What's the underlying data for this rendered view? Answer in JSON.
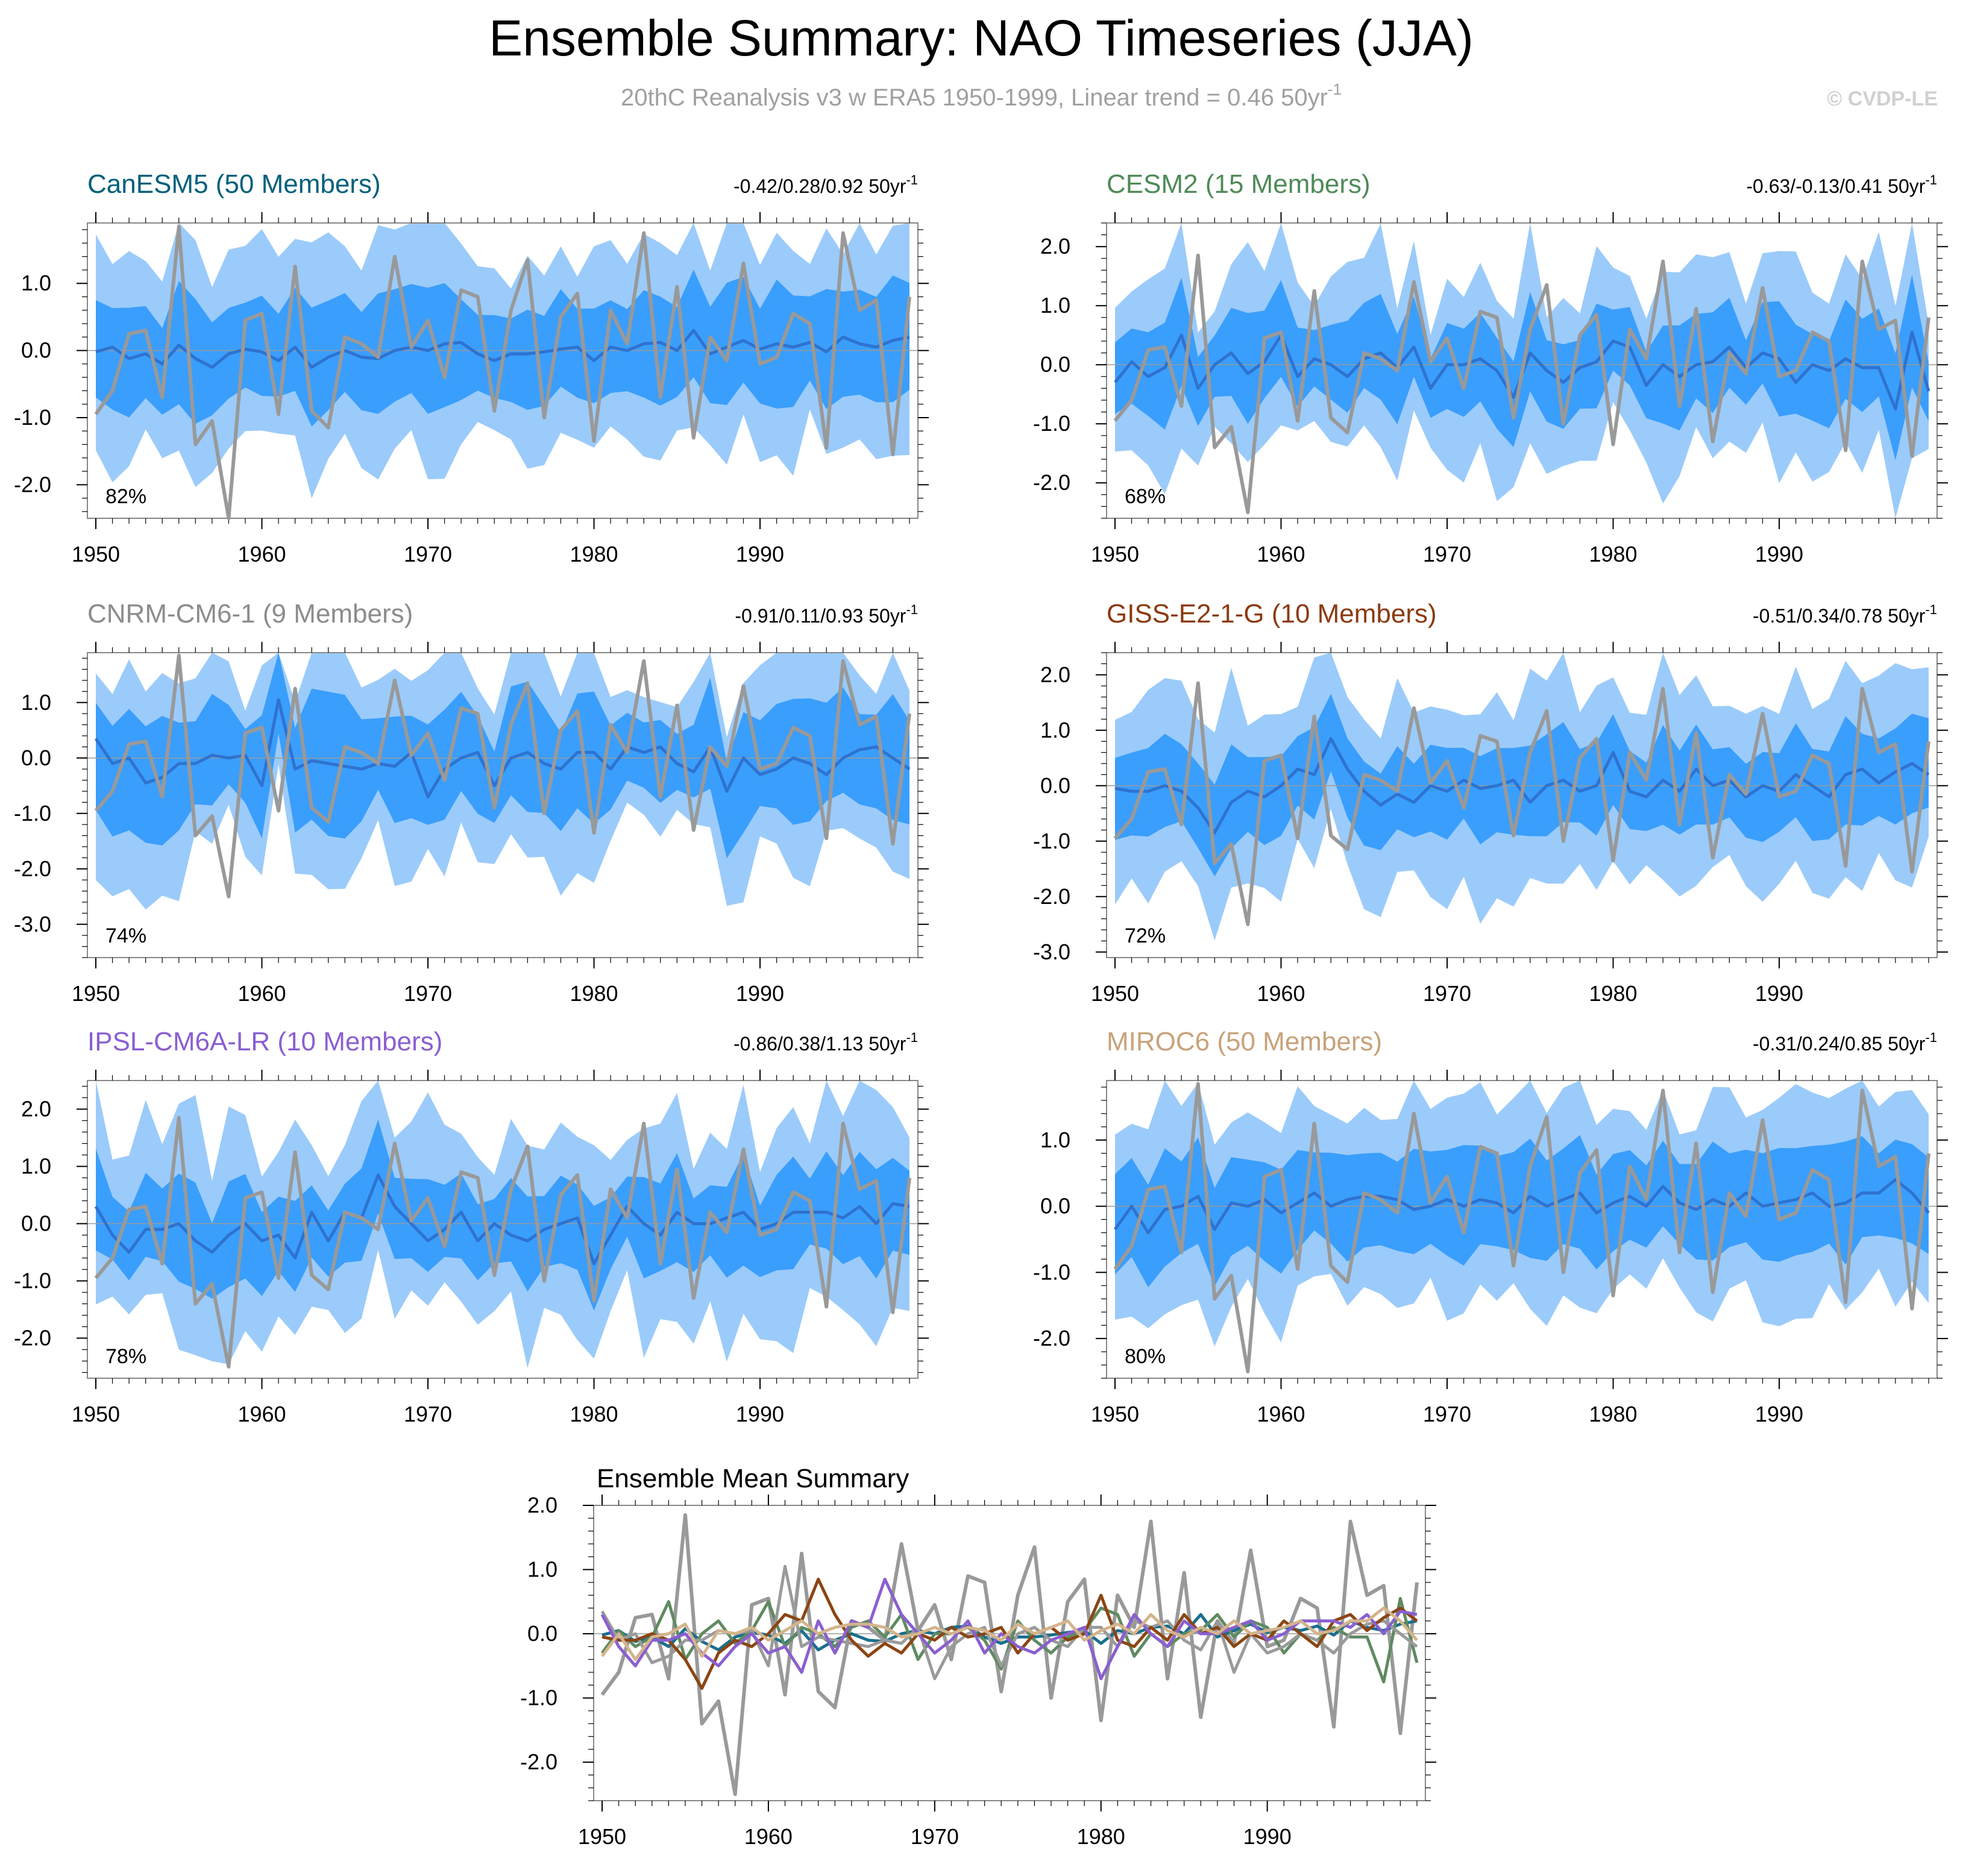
{
  "title": "Ensemble Summary: NAO Timeseries (JJA)",
  "subtitle": "20thC Reanalysis v3 w ERA5 1950-1999, Linear trend = 0.46 50yr",
  "subtitle_sup": "-1",
  "watermark": "© CVDP-LE",
  "colors": {
    "band_outer": "#9bcbfa",
    "band_inner": "#3a9efc",
    "ens_mean": "#2f72cf",
    "obs": "#999999",
    "zero": "#9a9a9a",
    "frame": "#888888"
  },
  "chart_data": {
    "years": [
      1950,
      1951,
      1952,
      1953,
      1954,
      1955,
      1956,
      1957,
      1958,
      1959,
      1960,
      1961,
      1962,
      1963,
      1964,
      1965,
      1966,
      1967,
      1968,
      1969,
      1970,
      1971,
      1972,
      1973,
      1974,
      1975,
      1976,
      1977,
      1978,
      1979,
      1980,
      1981,
      1982,
      1983,
      1984,
      1985,
      1986,
      1987,
      1988,
      1989,
      1990,
      1991,
      1992,
      1993,
      1994,
      1995,
      1996,
      1997,
      1998,
      1999
    ],
    "x_ticks": [
      1950,
      1960,
      1970,
      1980,
      1990
    ],
    "observed": {
      "name": "20thC Reanalysis v3 w ERA5",
      "values": [
        -0.95,
        -0.6,
        0.25,
        0.3,
        -0.7,
        1.85,
        -1.4,
        -1.05,
        -2.5,
        0.45,
        0.55,
        -0.95,
        1.25,
        -0.9,
        -1.15,
        0.2,
        0.1,
        -0.1,
        1.4,
        0.05,
        0.45,
        -0.4,
        0.9,
        0.8,
        -0.9,
        0.6,
        1.35,
        -1.0,
        0.5,
        0.85,
        -1.35,
        0.6,
        0.1,
        1.75,
        -0.7,
        0.95,
        -1.3,
        0.2,
        -0.15,
        1.3,
        -0.2,
        -0.1,
        0.55,
        0.4,
        -1.45,
        1.75,
        0.6,
        0.75,
        -1.55,
        0.8
      ]
    },
    "panels": [
      {
        "model": "CanESM5",
        "title": "CanESM5 (50 Members)",
        "title_color": "#00607b",
        "trend": "-0.42/0.28/0.92 50yr",
        "trend_sup": "-1",
        "pct": "82%",
        "ylim": [
          -2.5,
          1.9
        ],
        "yticks": [
          1.0,
          0.0,
          -1.0,
          -2.0
        ],
        "mean": [
          -0.02,
          0.05,
          -0.12,
          -0.05,
          -0.2,
          0.08,
          -0.12,
          -0.25,
          -0.05,
          0.02,
          -0.02,
          -0.15,
          0.05,
          -0.25,
          -0.1,
          0.0,
          -0.1,
          -0.12,
          0.0,
          0.05,
          0.0,
          0.1,
          0.12,
          -0.05,
          -0.15,
          -0.05,
          -0.05,
          -0.02,
          0.02,
          0.05,
          -0.15,
          0.05,
          0.0,
          0.1,
          0.12,
          0.0,
          0.3,
          -0.05,
          0.05,
          0.15,
          0.02,
          0.1,
          0.05,
          0.12,
          -0.02,
          0.2,
          0.1,
          0.05,
          0.15,
          0.2
        ],
        "band_in_w": 0.75,
        "band_out_w": 1.5,
        "mod_amp": 0.3,
        "seed": 1
      },
      {
        "model": "CESM2",
        "title": "CESM2 (15 Members)",
        "title_color": "#4f8a58",
        "trend": "-0.63/-0.13/0.41 50yr",
        "trend_sup": "-1",
        "pct": "68%",
        "ylim": [
          -2.6,
          2.4
        ],
        "yticks": [
          2.0,
          1.0,
          0.0,
          -1.0,
          -2.0
        ],
        "mean": [
          -0.3,
          0.05,
          -0.2,
          -0.05,
          0.5,
          -0.4,
          0.0,
          0.2,
          -0.15,
          0.05,
          0.5,
          -0.2,
          0.1,
          0.0,
          -0.2,
          0.1,
          0.2,
          -0.05,
          0.3,
          -0.4,
          0.0,
          0.0,
          0.1,
          -0.1,
          -0.55,
          0.2,
          -0.1,
          -0.3,
          -0.05,
          0.05,
          0.4,
          0.3,
          -0.35,
          0.0,
          -0.2,
          0.0,
          0.05,
          0.3,
          -0.05,
          0.2,
          0.1,
          -0.3,
          0.0,
          -0.1,
          0.1,
          -0.05,
          -0.05,
          -0.75,
          0.55,
          -0.45
        ],
        "band_in_w": 0.75,
        "band_out_w": 1.55,
        "mod_amp": 0.4,
        "seed": 2
      },
      {
        "model": "CNRM-CM6-1",
        "title": "CNRM-CM6-1 (9 Members)",
        "title_color": "#8c8c8c",
        "trend": "-0.91/0.11/0.93 50yr",
        "trend_sup": "-1",
        "pct": "74%",
        "ylim": [
          -3.6,
          1.9
        ],
        "yticks": [
          1.0,
          0.0,
          -1.0,
          -2.0,
          -3.0
        ],
        "mean": [
          0.35,
          -0.1,
          0.0,
          -0.45,
          -0.35,
          -0.1,
          -0.1,
          0.05,
          0.0,
          0.05,
          -0.5,
          1.05,
          -0.2,
          -0.05,
          -0.1,
          -0.15,
          -0.2,
          -0.1,
          -0.15,
          0.1,
          -0.7,
          -0.2,
          0.0,
          0.1,
          -0.5,
          0.0,
          0.1,
          -0.1,
          -0.2,
          0.1,
          0.1,
          -0.2,
          0.2,
          0.1,
          0.2,
          -0.1,
          -0.25,
          0.2,
          -0.6,
          0.0,
          -0.3,
          -0.2,
          0.0,
          -0.1,
          -0.3,
          0.0,
          0.15,
          0.2,
          0.0,
          -0.2
        ],
        "band_in_w": 0.9,
        "band_out_w": 1.7,
        "mod_amp": 0.5,
        "seed": 3
      },
      {
        "model": "GISS-E2-1-G",
        "title": "GISS-E2-1-G (10 Members)",
        "title_color": "#8b3a10",
        "trend": "-0.51/0.34/0.78 50yr",
        "trend_sup": "-1",
        "pct": "72%",
        "ylim": [
          -3.1,
          2.4
        ],
        "yticks": [
          2.0,
          1.0,
          0.0,
          -1.0,
          -2.0,
          -3.0
        ],
        "mean": [
          -0.05,
          -0.1,
          -0.1,
          0.0,
          -0.1,
          -0.4,
          -0.85,
          -0.3,
          -0.1,
          -0.2,
          0.0,
          0.3,
          0.2,
          0.85,
          0.3,
          -0.1,
          -0.35,
          -0.15,
          -0.3,
          0.0,
          -0.1,
          0.1,
          -0.05,
          0.0,
          0.1,
          -0.3,
          0.0,
          0.1,
          -0.1,
          0.0,
          0.6,
          -0.1,
          -0.2,
          0.1,
          -0.1,
          0.3,
          0.0,
          0.1,
          -0.2,
          0.0,
          -0.1,
          0.2,
          0.0,
          -0.2,
          0.2,
          0.3,
          0.05,
          0.25,
          0.4,
          0.2
        ],
        "band_in_w": 0.8,
        "band_out_w": 1.75,
        "mod_amp": 0.35,
        "seed": 4
      },
      {
        "model": "IPSL-CM6A-LR",
        "title": "IPSL-CM6A-LR (10 Members)",
        "title_color": "#8a5fd0",
        "trend": "-0.86/0.38/1.13 50yr",
        "trend_sup": "-1",
        "pct": "78%",
        "ylim": [
          -2.7,
          2.5
        ],
        "yticks": [
          2.0,
          1.0,
          0.0,
          -1.0,
          -2.0
        ],
        "mean": [
          0.3,
          -0.2,
          -0.5,
          -0.1,
          -0.1,
          0.0,
          -0.3,
          -0.5,
          -0.2,
          0.0,
          -0.3,
          -0.2,
          -0.6,
          0.2,
          -0.3,
          0.2,
          0.1,
          0.85,
          0.3,
          0.0,
          -0.3,
          -0.1,
          0.2,
          -0.3,
          0.0,
          -0.2,
          -0.3,
          -0.1,
          0.0,
          0.1,
          -0.7,
          -0.2,
          0.3,
          0.0,
          -0.2,
          0.2,
          0.0,
          0.0,
          0.1,
          0.2,
          -0.1,
          0.0,
          0.2,
          0.2,
          0.2,
          0.1,
          0.3,
          0.0,
          0.35,
          0.3
        ],
        "band_in_w": 0.75,
        "band_out_w": 1.65,
        "mod_amp": 0.45,
        "seed": 5
      },
      {
        "model": "MIROC6",
        "title": "MIROC6 (50 Members)",
        "title_color": "#c8a27a",
        "trend": "-0.31/0.24/0.85 50yr",
        "trend_sup": "-1",
        "pct": "80%",
        "ylim": [
          -2.6,
          1.9
        ],
        "yticks": [
          1.0,
          0.0,
          -1.0,
          -2.0
        ],
        "mean": [
          -0.35,
          0.0,
          -0.4,
          -0.05,
          0.0,
          0.15,
          -0.35,
          0.05,
          0.0,
          0.1,
          -0.1,
          0.05,
          0.2,
          0.0,
          0.1,
          0.15,
          0.15,
          0.1,
          -0.05,
          0.0,
          0.1,
          0.0,
          0.1,
          0.05,
          -0.1,
          0.15,
          0.0,
          0.1,
          0.2,
          -0.1,
          0.05,
          0.15,
          0.0,
          0.3,
          0.05,
          -0.05,
          0.1,
          0.0,
          0.2,
          0.0,
          0.05,
          0.1,
          0.2,
          0.0,
          0.05,
          0.2,
          0.2,
          0.4,
          0.2,
          -0.1
        ],
        "band_in_w": 0.75,
        "band_out_w": 1.5,
        "mod_amp": 0.25,
        "seed": 6
      }
    ],
    "summary": {
      "title": "Ensemble Mean Summary",
      "ylim": [
        -2.6,
        2.0
      ],
      "yticks": [
        2.0,
        1.0,
        0.0,
        -1.0,
        -2.0
      ],
      "series": [
        {
          "name": "CanESM5",
          "color": "#1a6e8e"
        },
        {
          "name": "CESM2",
          "color": "#5f8a60"
        },
        {
          "name": "CNRM-CM6-1",
          "color": "#9a9a9a"
        },
        {
          "name": "GISS-E2-1-G",
          "color": "#8b4513"
        },
        {
          "name": "IPSL-CM6A-LR",
          "color": "#8a5fd0"
        },
        {
          "name": "MIROC6",
          "color": "#d4b48c"
        }
      ]
    }
  }
}
